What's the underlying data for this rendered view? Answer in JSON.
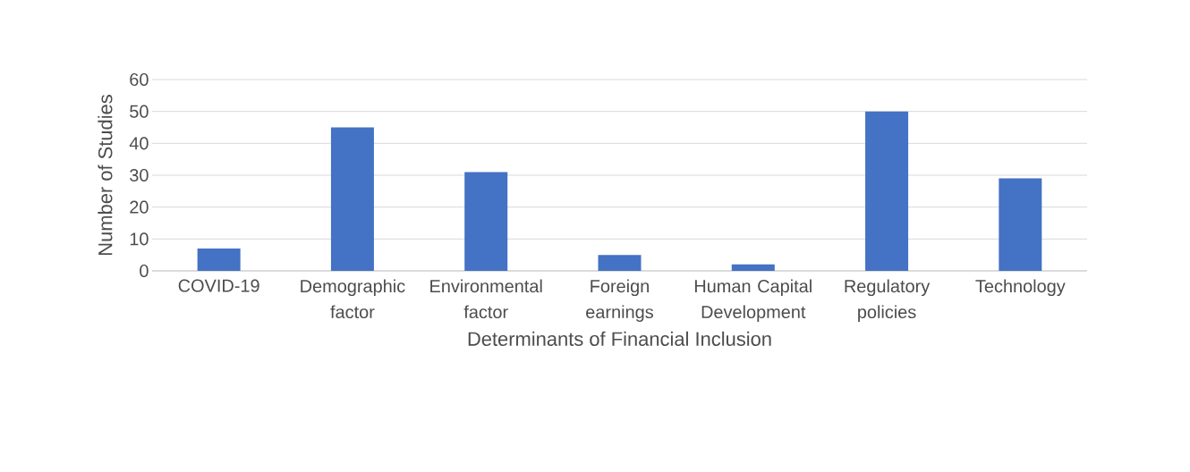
{
  "chart_data": {
    "type": "bar",
    "categories": [
      "COVID-19",
      "Demographic factor",
      "Environmental factor",
      "Foreign earnings",
      "Human Capital Development",
      "Regulatory policies",
      "Technology"
    ],
    "values": [
      7,
      45,
      31,
      5,
      2,
      50,
      29
    ],
    "color": "#4472c4",
    "xlabel": "Determinants of Financial Inclusion",
    "ylabel": "Number of Studies",
    "ylim": [
      0,
      60
    ],
    "yticks": [
      0,
      10,
      20,
      30,
      40,
      50,
      60
    ],
    "grid": "y"
  }
}
